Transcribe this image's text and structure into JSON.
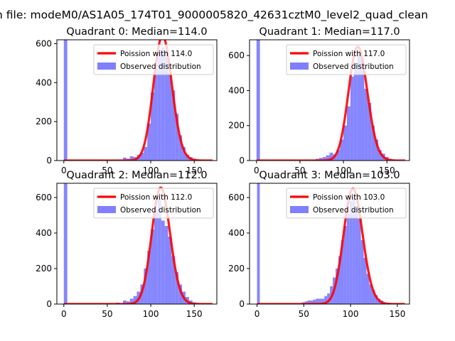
{
  "figure": {
    "suptitle": "n file: modeM0/AS1A05_174T01_9000005820_42631cztM0_level2_quad_clean"
  },
  "colors": {
    "hist": "#7f7fff",
    "poisson": "#ff0000",
    "axes": "#000000",
    "background": "#ffffff"
  },
  "chart_data": [
    {
      "type": "histogram",
      "title": "Quadrant 0: Median=114.0",
      "xlim": [
        -8,
        176
      ],
      "ylim": [
        0,
        620
      ],
      "xticks": [
        0,
        50,
        100,
        150
      ],
      "yticks": [
        0,
        200,
        400,
        600
      ],
      "grid": false,
      "legend": "upper-right",
      "median": 114.0,
      "poisson_peak": 640,
      "legend_entries": [
        "Poission with 114.0",
        "Observed distribution"
      ],
      "bin_width": 4,
      "bins_start": [
        0,
        68,
        72,
        76,
        80,
        84,
        88,
        92,
        96,
        100,
        104,
        108,
        112,
        116,
        120,
        124,
        128,
        132,
        136,
        140,
        144,
        148,
        152,
        156,
        160
      ],
      "bins_count": [
        620,
        15,
        10,
        22,
        18,
        30,
        40,
        70,
        190,
        350,
        470,
        560,
        580,
        560,
        450,
        360,
        240,
        130,
        70,
        30,
        18,
        10,
        6,
        3,
        1
      ]
    },
    {
      "type": "histogram",
      "title": "Quadrant 1: Median=117.0",
      "xlim": [
        -8,
        176
      ],
      "ylim": [
        0,
        690
      ],
      "xticks": [
        0,
        50,
        100,
        150
      ],
      "yticks": [
        0,
        200,
        400,
        600
      ],
      "grid": false,
      "legend": "upper-right",
      "median": 117.0,
      "poisson_peak": 650,
      "legend_entries": [
        "Poission with 117.0",
        "Observed distribution"
      ],
      "bin_width": 4,
      "bins_start": [
        0,
        68,
        72,
        76,
        80,
        84,
        88,
        92,
        96,
        100,
        104,
        108,
        112,
        116,
        120,
        124,
        128,
        132,
        136,
        140,
        144,
        148,
        152,
        156
      ],
      "bins_count": [
        690,
        10,
        15,
        20,
        30,
        45,
        35,
        60,
        120,
        200,
        310,
        480,
        560,
        620,
        580,
        410,
        330,
        200,
        120,
        60,
        40,
        20,
        10,
        5
      ]
    },
    {
      "type": "histogram",
      "title": "Quadrant 2: Median=112.0",
      "xlim": [
        -8,
        176
      ],
      "ylim": [
        0,
        680
      ],
      "xticks": [
        0,
        50,
        100,
        150
      ],
      "yticks": [
        0,
        200,
        400,
        600
      ],
      "grid": false,
      "legend": "upper-right",
      "median": 112.0,
      "poisson_peak": 655,
      "legend_entries": [
        "Poission with 112.0",
        "Observed distribution"
      ],
      "bin_width": 4,
      "bins_start": [
        0,
        52,
        60,
        68,
        72,
        76,
        80,
        84,
        88,
        92,
        96,
        100,
        104,
        108,
        112,
        116,
        120,
        124,
        128,
        132,
        136,
        140,
        144,
        148,
        152,
        156
      ],
      "bins_count": [
        680,
        5,
        8,
        20,
        15,
        30,
        45,
        70,
        110,
        200,
        300,
        420,
        530,
        590,
        470,
        440,
        380,
        270,
        180,
        110,
        70,
        40,
        20,
        10,
        5,
        2
      ]
    },
    {
      "type": "histogram",
      "title": "Quadrant 3: Median=103.0",
      "xlim": [
        -8,
        163
      ],
      "ylim": [
        0,
        680
      ],
      "xticks": [
        0,
        50,
        100,
        150
      ],
      "yticks": [
        0,
        200,
        400,
        600
      ],
      "grid": false,
      "legend": "upper-right",
      "median": 103.0,
      "poisson_peak": 650,
      "legend_entries": [
        "Poission with 103.0",
        "Observed distribution"
      ],
      "bin_width": 3,
      "bins_start": [
        0,
        48,
        51,
        54,
        57,
        60,
        63,
        66,
        69,
        72,
        75,
        78,
        81,
        84,
        87,
        90,
        93,
        96,
        99,
        102,
        105,
        108,
        111,
        114,
        117,
        120,
        123,
        126,
        129,
        132,
        135,
        138,
        141,
        144,
        147
      ],
      "bins_count": [
        680,
        10,
        15,
        20,
        20,
        25,
        30,
        30,
        30,
        45,
        60,
        100,
        150,
        200,
        270,
        360,
        440,
        510,
        580,
        600,
        540,
        480,
        360,
        260,
        170,
        110,
        80,
        50,
        30,
        20,
        10,
        8,
        5,
        3,
        2
      ]
    }
  ]
}
